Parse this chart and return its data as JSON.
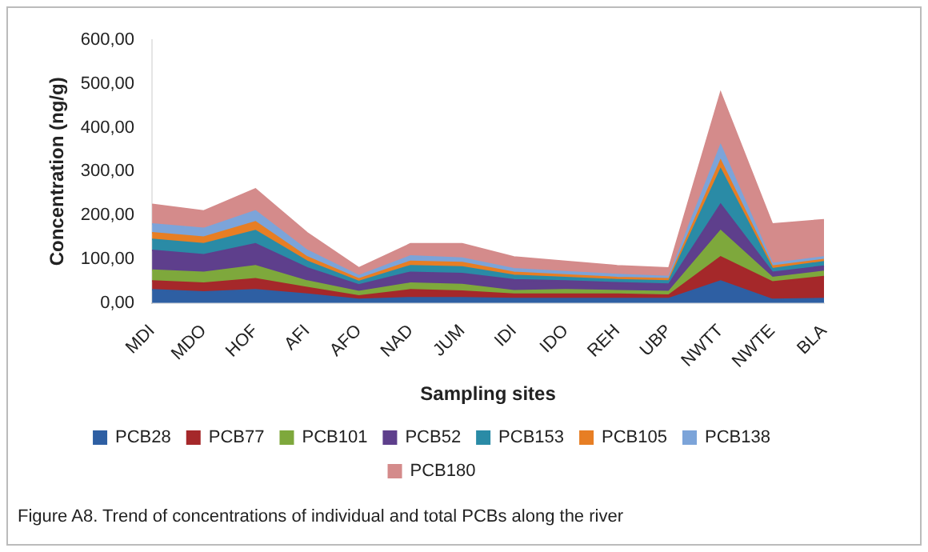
{
  "chart_data": {
    "type": "area",
    "stacked": true,
    "xlabel": "Sampling sites",
    "ylabel": "Concentration (ng/g)",
    "categories": [
      "MDI",
      "MDO",
      "HOF",
      "AFI",
      "AFO",
      "NAD",
      "JUM",
      "IDI",
      "IDO",
      "REH",
      "UBP",
      "NWTT",
      "NWTE",
      "BLA"
    ],
    "ylim": [
      0,
      600
    ],
    "yticks": [
      {
        "value": 0,
        "label": "0,00"
      },
      {
        "value": 100,
        "label": "100,00"
      },
      {
        "value": 200,
        "label": "200,00"
      },
      {
        "value": 300,
        "label": "300,00"
      },
      {
        "value": 400,
        "label": "400,00"
      },
      {
        "value": 500,
        "label": "500,00"
      },
      {
        "value": 600,
        "label": "600,00"
      }
    ],
    "grid": false,
    "legend": "bottom",
    "series": [
      {
        "name": "PCB28",
        "color": "#2e5fa3",
        "values": [
          30,
          25,
          30,
          20,
          8,
          12,
          12,
          10,
          10,
          10,
          10,
          50,
          8,
          10
        ]
      },
      {
        "name": "PCB77",
        "color": "#a5282a",
        "values": [
          20,
          20,
          25,
          15,
          8,
          18,
          15,
          10,
          10,
          10,
          8,
          55,
          40,
          50
        ]
      },
      {
        "name": "PCB101",
        "color": "#7ea83c",
        "values": [
          25,
          25,
          30,
          15,
          10,
          15,
          15,
          8,
          10,
          8,
          8,
          60,
          10,
          12
        ]
      },
      {
        "name": "PCB52",
        "color": "#5e3f8c",
        "values": [
          45,
          40,
          50,
          30,
          15,
          25,
          25,
          25,
          20,
          18,
          17,
          60,
          12,
          12
        ]
      },
      {
        "name": "PCB153",
        "color": "#2a8ba6",
        "values": [
          25,
          25,
          30,
          15,
          8,
          15,
          15,
          10,
          8,
          7,
          7,
          80,
          8,
          10
        ]
      },
      {
        "name": "PCB105",
        "color": "#e77e24",
        "values": [
          15,
          15,
          20,
          10,
          6,
          10,
          10,
          7,
          6,
          5,
          5,
          20,
          6,
          5
        ]
      },
      {
        "name": "PCB138",
        "color": "#7ca4d9",
        "values": [
          20,
          20,
          25,
          15,
          7,
          12,
          10,
          8,
          7,
          7,
          5,
          35,
          6,
          6
        ]
      },
      {
        "name": "PCB180",
        "color": "#d48b8b",
        "values": [
          45,
          40,
          50,
          40,
          18,
          28,
          33,
          27,
          24,
          20,
          20,
          120,
          90,
          85
        ]
      }
    ],
    "annotations": [
      "Figure A8. Trend of concentrations of individual and total PCBs along the river"
    ]
  }
}
